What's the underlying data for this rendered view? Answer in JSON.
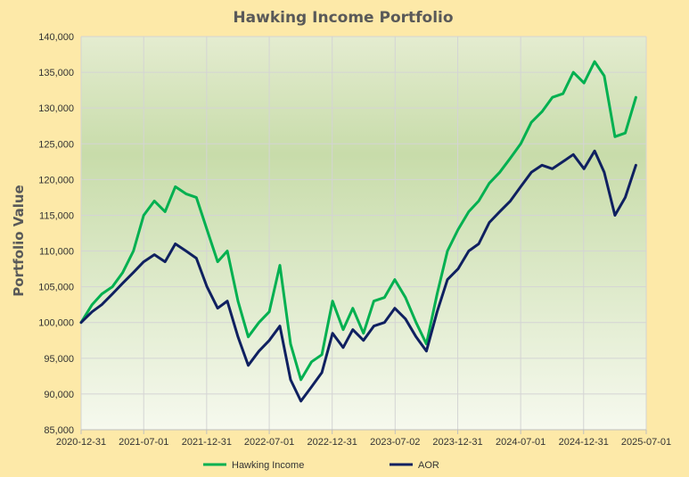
{
  "chart_data": {
    "type": "line",
    "title": "Hawking Income Portfolio",
    "ylabel": "Portfolio Value",
    "xlabel": "",
    "ylim": [
      85000,
      140000
    ],
    "yticks": [
      85000,
      90000,
      95000,
      100000,
      105000,
      110000,
      115000,
      120000,
      125000,
      130000,
      135000,
      140000
    ],
    "ytick_labels": [
      "85,000",
      "90,000",
      "95,000",
      "100,000",
      "105,000",
      "110,000",
      "115,000",
      "120,000",
      "125,000",
      "130,000",
      "135,000",
      "140,000"
    ],
    "xlim": [
      "2020-12-31",
      "2025-07-01"
    ],
    "xtick_labels": [
      "2020-12-31",
      "2021-07-01",
      "2021-12-31",
      "2022-07-01",
      "2022-12-31",
      "2023-07-02",
      "2023-12-31",
      "2024-07-01",
      "2024-12-31",
      "2025-07-01"
    ],
    "grid": true,
    "legend_position": "bottom",
    "series": [
      {
        "name": "Hawking Income",
        "color": "#00b050",
        "x": [
          "2020-12-31",
          "2021-02-01",
          "2021-03-01",
          "2021-04-01",
          "2021-05-01",
          "2021-06-01",
          "2021-07-01",
          "2021-08-01",
          "2021-09-01",
          "2021-10-01",
          "2021-11-01",
          "2021-12-01",
          "2022-01-01",
          "2022-02-01",
          "2022-03-01",
          "2022-04-01",
          "2022-05-01",
          "2022-06-01",
          "2022-07-01",
          "2022-08-01",
          "2022-09-01",
          "2022-10-01",
          "2022-11-01",
          "2022-12-01",
          "2023-01-01",
          "2023-02-01",
          "2023-03-01",
          "2023-04-01",
          "2023-05-01",
          "2023-06-01",
          "2023-07-01",
          "2023-08-01",
          "2023-09-01",
          "2023-10-01",
          "2023-11-01",
          "2023-12-01",
          "2024-01-01",
          "2024-02-01",
          "2024-03-01",
          "2024-04-01",
          "2024-05-01",
          "2024-06-01",
          "2024-07-01",
          "2024-08-01",
          "2024-09-01",
          "2024-10-01",
          "2024-11-01",
          "2024-12-01",
          "2025-01-01",
          "2025-02-01",
          "2025-03-01",
          "2025-04-01",
          "2025-05-01",
          "2025-06-01"
        ],
        "values": [
          100000,
          102500,
          104000,
          105000,
          107000,
          110000,
          115000,
          117000,
          115500,
          119000,
          118000,
          117500,
          113000,
          108500,
          110000,
          103000,
          98000,
          100000,
          101500,
          108000,
          97000,
          92000,
          94500,
          95500,
          103000,
          99000,
          102000,
          98500,
          103000,
          103500,
          106000,
          103500,
          100000,
          97000,
          104000,
          110000,
          113000,
          115500,
          117000,
          119500,
          121000,
          123000,
          125000,
          128000,
          129500,
          131500,
          132000,
          135000,
          133500,
          136500,
          134500,
          126000,
          126500,
          131500
        ]
      },
      {
        "name": "AOR",
        "color": "#0f2060",
        "x": [
          "2020-12-31",
          "2021-02-01",
          "2021-03-01",
          "2021-04-01",
          "2021-05-01",
          "2021-06-01",
          "2021-07-01",
          "2021-08-01",
          "2021-09-01",
          "2021-10-01",
          "2021-11-01",
          "2021-12-01",
          "2022-01-01",
          "2022-02-01",
          "2022-03-01",
          "2022-04-01",
          "2022-05-01",
          "2022-06-01",
          "2022-07-01",
          "2022-08-01",
          "2022-09-01",
          "2022-10-01",
          "2022-11-01",
          "2022-12-01",
          "2023-01-01",
          "2023-02-01",
          "2023-03-01",
          "2023-04-01",
          "2023-05-01",
          "2023-06-01",
          "2023-07-01",
          "2023-08-01",
          "2023-09-01",
          "2023-10-01",
          "2023-11-01",
          "2023-12-01",
          "2024-01-01",
          "2024-02-01",
          "2024-03-01",
          "2024-04-01",
          "2024-05-01",
          "2024-06-01",
          "2024-07-01",
          "2024-08-01",
          "2024-09-01",
          "2024-10-01",
          "2024-11-01",
          "2024-12-01",
          "2025-01-01",
          "2025-02-01",
          "2025-03-01",
          "2025-04-01",
          "2025-05-01",
          "2025-06-01"
        ],
        "values": [
          100000,
          101500,
          102500,
          104000,
          105500,
          107000,
          108500,
          109500,
          108500,
          111000,
          110000,
          109000,
          105000,
          102000,
          103000,
          98000,
          94000,
          96000,
          97500,
          99500,
          92000,
          89000,
          91000,
          93000,
          98500,
          96500,
          99000,
          97500,
          99500,
          100000,
          102000,
          100500,
          98000,
          96000,
          101500,
          106000,
          107500,
          110000,
          111000,
          114000,
          115500,
          117000,
          119000,
          121000,
          122000,
          121500,
          122500,
          123500,
          121500,
          124000,
          121000,
          115000,
          117500,
          122000
        ]
      }
    ]
  }
}
